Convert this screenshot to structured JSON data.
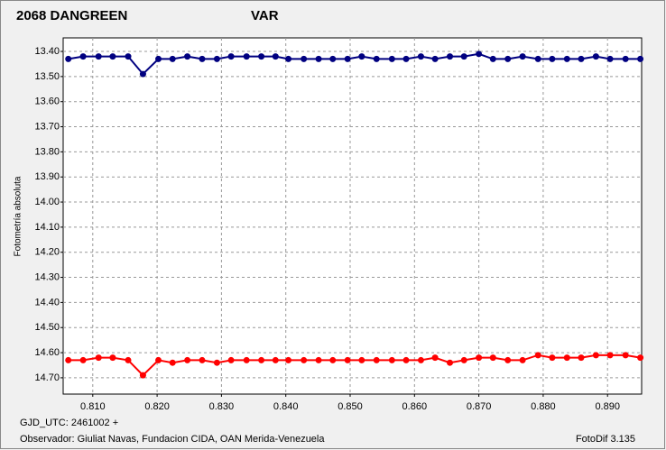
{
  "chart_data": {
    "type": "line",
    "y_label": "Fotometría absoluta",
    "footer_left": "GJD_UTC: 2461002 +",
    "footer_observer": "Observador: Giuliat Navas, Fundacion CIDA, OAN  Merida-Venezuela",
    "footer_right": "FotoDif 3.135",
    "inverted_y": true,
    "grid": true,
    "xlim": [
      0.8054,
      0.8953
    ],
    "xticks": [
      {
        "value": 0.81,
        "label": "0.810"
      },
      {
        "value": 0.82,
        "label": "0.820"
      },
      {
        "value": 0.83,
        "label": "0.830"
      },
      {
        "value": 0.84,
        "label": "0.840"
      },
      {
        "value": 0.85,
        "label": "0.850"
      },
      {
        "value": 0.86,
        "label": "0.860"
      },
      {
        "value": 0.87,
        "label": "0.870"
      },
      {
        "value": 0.88,
        "label": "0.880"
      },
      {
        "value": 0.89,
        "label": "0.890"
      }
    ],
    "ylim": [
      13.346,
      14.765
    ],
    "yticks": [
      {
        "value": 13.4,
        "label": "13.40"
      },
      {
        "value": 13.5,
        "label": "13.50"
      },
      {
        "value": 13.6,
        "label": "13.60"
      },
      {
        "value": 13.7,
        "label": "13.70"
      },
      {
        "value": 13.8,
        "label": "13.80"
      },
      {
        "value": 13.9,
        "label": "13.90"
      },
      {
        "value": 14.0,
        "label": "14.00"
      },
      {
        "value": 14.1,
        "label": "14.10"
      },
      {
        "value": 14.2,
        "label": "14.20"
      },
      {
        "value": 14.3,
        "label": "14.30"
      },
      {
        "value": 14.4,
        "label": "14.40"
      },
      {
        "value": 14.5,
        "label": "14.50"
      },
      {
        "value": 14.6,
        "label": "14.60"
      },
      {
        "value": 14.7,
        "label": "14.70"
      }
    ],
    "x": [
      0.8062,
      0.8085,
      0.8109,
      0.8131,
      0.8155,
      0.8178,
      0.8202,
      0.8224,
      0.8247,
      0.827,
      0.8293,
      0.8315,
      0.8339,
      0.8362,
      0.8384,
      0.8404,
      0.8428,
      0.8451,
      0.8473,
      0.8496,
      0.8518,
      0.8541,
      0.8565,
      0.8587,
      0.861,
      0.8632,
      0.8655,
      0.8677,
      0.87,
      0.8722,
      0.8745,
      0.8768,
      0.8792,
      0.8814,
      0.8837,
      0.8859,
      0.8882,
      0.8904,
      0.8928,
      0.8951
    ],
    "series": [
      {
        "name": "2068 DANGREEN",
        "color": "#ff0000",
        "values": [
          14.63,
          14.63,
          14.62,
          14.62,
          14.63,
          14.69,
          14.63,
          14.64,
          14.63,
          14.63,
          14.64,
          14.63,
          14.63,
          14.63,
          14.63,
          14.63,
          14.63,
          14.63,
          14.63,
          14.63,
          14.63,
          14.63,
          14.63,
          14.63,
          14.63,
          14.62,
          14.64,
          14.63,
          14.62,
          14.62,
          14.63,
          14.63,
          14.61,
          14.62,
          14.62,
          14.62,
          14.61,
          14.61,
          14.61,
          14.62
        ]
      },
      {
        "name": "VAR",
        "color": "#000080",
        "values": [
          13.43,
          13.42,
          13.42,
          13.42,
          13.42,
          13.49,
          13.43,
          13.43,
          13.42,
          13.43,
          13.43,
          13.42,
          13.42,
          13.42,
          13.42,
          13.43,
          13.43,
          13.43,
          13.43,
          13.43,
          13.42,
          13.43,
          13.43,
          13.43,
          13.42,
          13.43,
          13.42,
          13.42,
          13.41,
          13.43,
          13.43,
          13.42,
          13.43,
          13.43,
          13.43,
          13.43,
          13.42,
          13.43,
          13.43,
          13.43
        ]
      }
    ]
  }
}
